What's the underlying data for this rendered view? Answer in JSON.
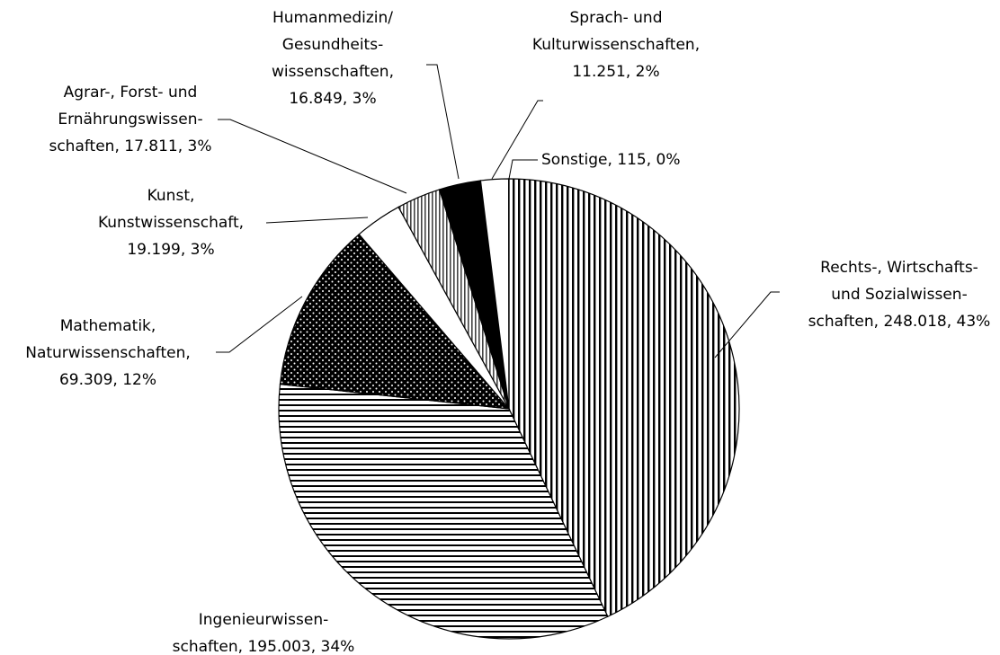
{
  "chart_data": {
    "type": "pie",
    "labels": [
      [
        "Rechts-, Wirtschafts-",
        "und Sozialwissen-",
        "schaften, 248.018, 43%"
      ],
      [
        "Ingenieurwissen-",
        "schaften, 195.003, 34%"
      ],
      [
        "Mathematik,",
        "Naturwissenschaften,",
        "69.309, 12%"
      ],
      [
        "Kunst,",
        "Kunstwissenschaft,",
        "19.199, 3%"
      ],
      [
        "Agrar-, Forst- und",
        "Ernährungswissen-",
        "schaften, 17.811, 3%"
      ],
      [
        "Humanmedizin/",
        "Gesundheits-",
        "wissenschaften,",
        "16.849, 3%"
      ],
      [
        "Sprach- und",
        "Kulturwissenschaften,",
        "11.251, 2%"
      ],
      [
        "Sonstige, 115, 0%"
      ]
    ],
    "values": [
      248018,
      195003,
      69309,
      19199,
      17811,
      16849,
      11251,
      115
    ],
    "patterns": [
      "vertical",
      "horizontal",
      "dots",
      "white",
      "vertical-fine",
      "black",
      "white",
      "grid"
    ]
  }
}
